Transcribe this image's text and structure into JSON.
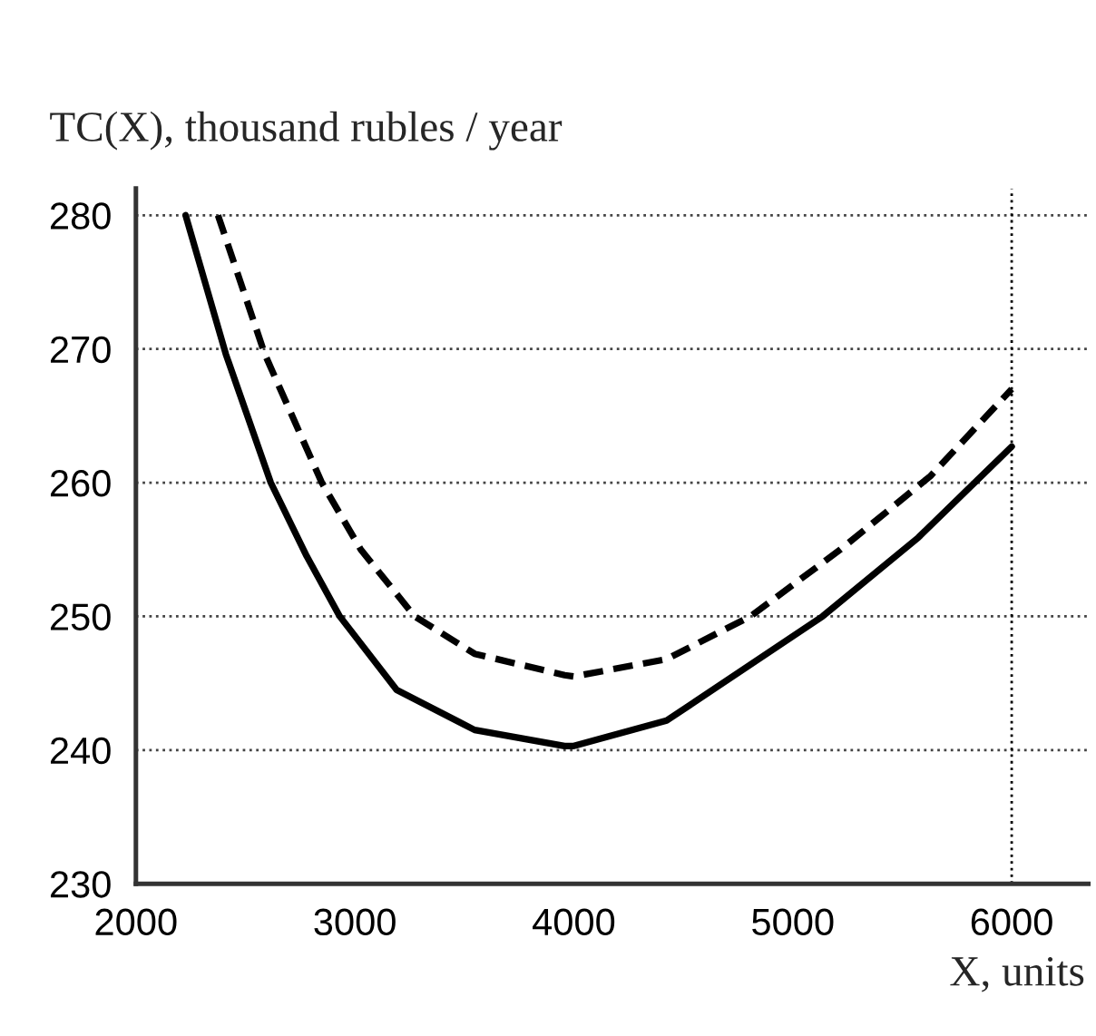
{
  "chart_data": {
    "type": "line",
    "ylabel": "TC(X), thousand rubles / year",
    "xlabel": "X, units",
    "xlim": [
      2000,
      6350
    ],
    "xticks": [
      2000,
      3000,
      4000,
      5000,
      6000
    ],
    "ylim": [
      230,
      282
    ],
    "yticks": [
      230,
      240,
      250,
      260,
      270,
      280
    ],
    "grid": "y",
    "marker": "none",
    "ref_lines": [
      {
        "axis": "x",
        "value": 6000,
        "label": null,
        "line_style": "dotted",
        "color": "#000000"
      }
    ],
    "series": [
      {
        "color": "#000000",
        "line_style": "solid",
        "x": [
          2227,
          2411,
          2616,
          2780,
          2931,
          3191,
          3547,
          3958,
          4000,
          4424,
          5136,
          5574,
          6000
        ],
        "values": [
          280,
          269.6,
          260,
          254.5,
          250,
          244.5,
          241.5,
          240.3,
          240.3,
          242.2,
          250,
          255.9,
          262.7
        ]
      },
      {
        "color": "#000000",
        "line_style": "dashed",
        "x": [
          2375,
          2589,
          2849,
          3027,
          3273,
          3547,
          3958,
          4000,
          4424,
          4807,
          5218,
          5629,
          6000
        ],
        "values": [
          280,
          269.6,
          260,
          255,
          250,
          247.2,
          245.6,
          245.5,
          246.8,
          250,
          255,
          260.5,
          267.0
        ]
      }
    ]
  }
}
